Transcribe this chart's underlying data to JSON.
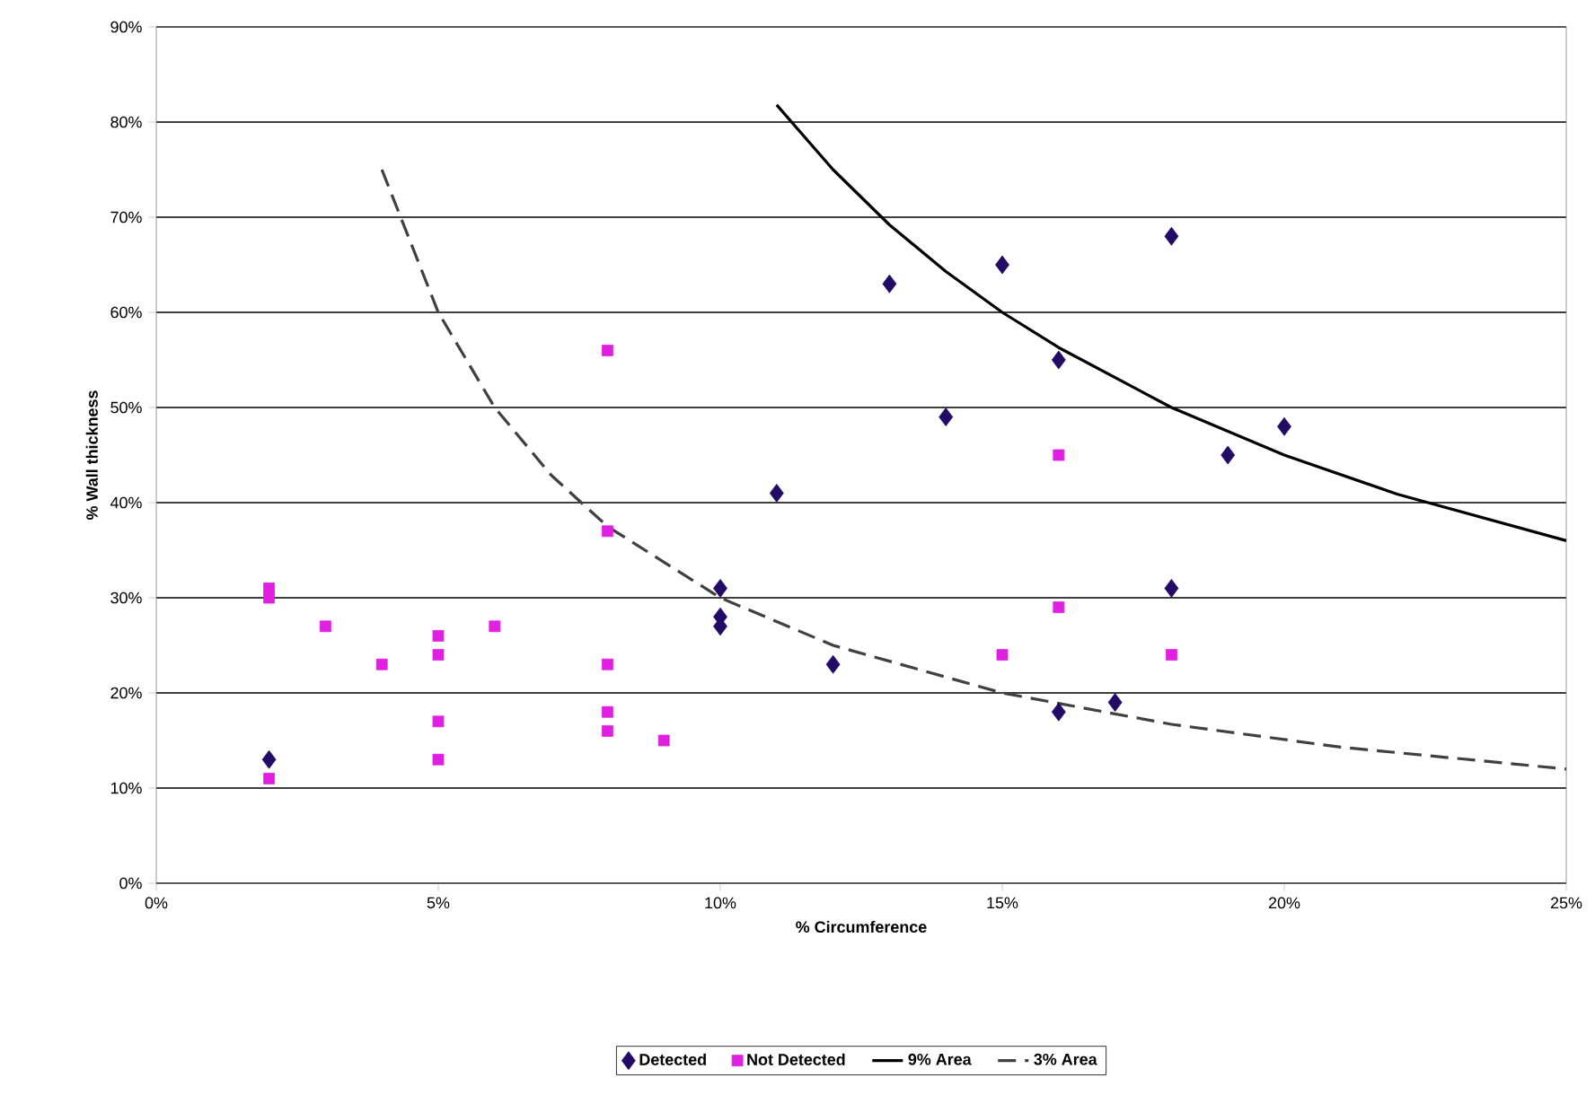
{
  "chart_data": {
    "type": "scatter",
    "xlabel": "% Circumference",
    "ylabel": "% Wall thickness",
    "xlim": [
      0,
      25
    ],
    "ylim": [
      0,
      90
    ],
    "xticks": [
      {
        "value": 0,
        "label": "0%"
      },
      {
        "value": 5,
        "label": "5%"
      },
      {
        "value": 10,
        "label": "10%"
      },
      {
        "value": 15,
        "label": "15%"
      },
      {
        "value": 20,
        "label": "20%"
      },
      {
        "value": 25,
        "label": "25%"
      }
    ],
    "yticks": [
      {
        "value": 0,
        "label": "0%"
      },
      {
        "value": 10,
        "label": "10%"
      },
      {
        "value": 20,
        "label": "20%"
      },
      {
        "value": 30,
        "label": "30%"
      },
      {
        "value": 40,
        "label": "40%"
      },
      {
        "value": 50,
        "label": "50%"
      },
      {
        "value": 60,
        "label": "60%"
      },
      {
        "value": 70,
        "label": "70%"
      },
      {
        "value": 80,
        "label": "80%"
      },
      {
        "value": 90,
        "label": "90%"
      }
    ],
    "grid": "y",
    "legend": "bottom",
    "series": [
      {
        "name": "Detected",
        "color": "#220a66",
        "marker": "diamond",
        "x": [
          2,
          10,
          10,
          10,
          11,
          12,
          13,
          14,
          15,
          16,
          16,
          17,
          18,
          18,
          19,
          20
        ],
        "values": [
          13,
          31,
          28,
          27,
          41,
          23,
          63,
          49,
          65,
          55,
          18,
          19,
          68,
          31,
          45,
          48
        ]
      },
      {
        "name": "Not Detected",
        "color": "#e020e0",
        "marker": "square",
        "x": [
          2,
          2,
          2,
          3,
          4,
          5,
          5,
          5,
          5,
          6,
          8,
          8,
          8,
          8,
          8,
          9,
          15,
          16,
          16,
          18
        ],
        "values": [
          31,
          30,
          11,
          27,
          23,
          26,
          24,
          17,
          13,
          27,
          56,
          37,
          23,
          18,
          16,
          15,
          24,
          45,
          29,
          24
        ]
      },
      {
        "name": "9% Area",
        "type": "line",
        "color": "#000000",
        "marker": "none",
        "line_style": "solid",
        "x": [
          11,
          12,
          13,
          14,
          15,
          16,
          18,
          20,
          22,
          25
        ],
        "values": [
          81.8,
          75,
          69.2,
          64.3,
          60,
          56.3,
          50,
          45,
          40.9,
          36
        ]
      },
      {
        "name": "3% Area",
        "type": "line",
        "color": "#404040",
        "marker": "none",
        "line_style": "dashed",
        "x": [
          4,
          5,
          6,
          7,
          8,
          10,
          12,
          15,
          18,
          21,
          25
        ],
        "values": [
          75,
          60,
          50,
          42.9,
          37.5,
          30,
          25,
          20,
          16.7,
          14.3,
          12
        ]
      }
    ]
  }
}
